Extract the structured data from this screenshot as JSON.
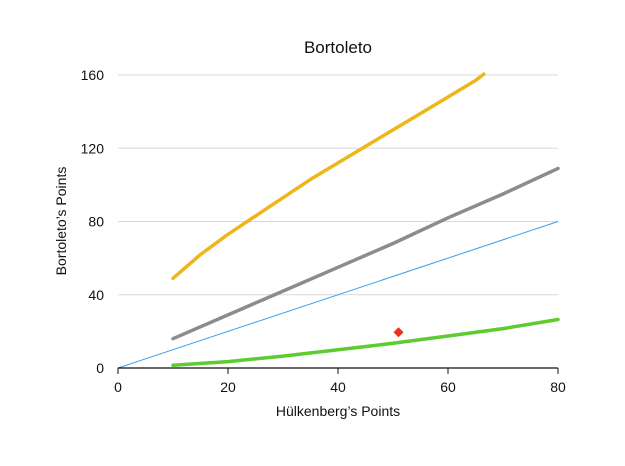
{
  "chart_data": {
    "type": "line",
    "title": "Bortoleto",
    "xlabel": "Hülkenberg’s Points",
    "ylabel": "Bortoleto’s Points",
    "xlim": [
      0,
      80
    ],
    "ylim": [
      0,
      160
    ],
    "x_ticks": [
      "0",
      "20",
      "40",
      "60",
      "80"
    ],
    "y_ticks": [
      "0",
      "40",
      "80",
      "120",
      "160"
    ],
    "grid": "horizontal",
    "legend": "none",
    "series": [
      {
        "color": "#f0b51b",
        "kind": "line",
        "points": [
          [
            10,
            49
          ],
          [
            15,
            62
          ],
          [
            20,
            73
          ],
          [
            25,
            83
          ],
          [
            30,
            93
          ],
          [
            35,
            103
          ],
          [
            40,
            112
          ],
          [
            45,
            121
          ],
          [
            50,
            130
          ],
          [
            55,
            139
          ],
          [
            60,
            148
          ],
          [
            65,
            157
          ],
          [
            66.5,
            160.5
          ]
        ]
      },
      {
        "color": "#8c8c8c",
        "kind": "line",
        "points": [
          [
            10,
            16
          ],
          [
            20,
            29
          ],
          [
            30,
            42
          ],
          [
            40,
            55
          ],
          [
            50,
            68
          ],
          [
            60,
            82
          ],
          [
            70,
            95
          ],
          [
            80,
            109
          ]
        ]
      },
      {
        "color": "#3aa0e0",
        "kind": "line",
        "points": [
          [
            0,
            0
          ],
          [
            80,
            80
          ]
        ]
      },
      {
        "color": "#5ccc30",
        "kind": "line",
        "points": [
          [
            10,
            1.5
          ],
          [
            20,
            3.5
          ],
          [
            30,
            6.5
          ],
          [
            40,
            10
          ],
          [
            50,
            13.5
          ],
          [
            60,
            17.5
          ],
          [
            70,
            21.5
          ],
          [
            80,
            26.5
          ]
        ]
      },
      {
        "color": "#e8321e",
        "kind": "marker",
        "points": [
          [
            51,
            19.5
          ]
        ]
      }
    ]
  }
}
